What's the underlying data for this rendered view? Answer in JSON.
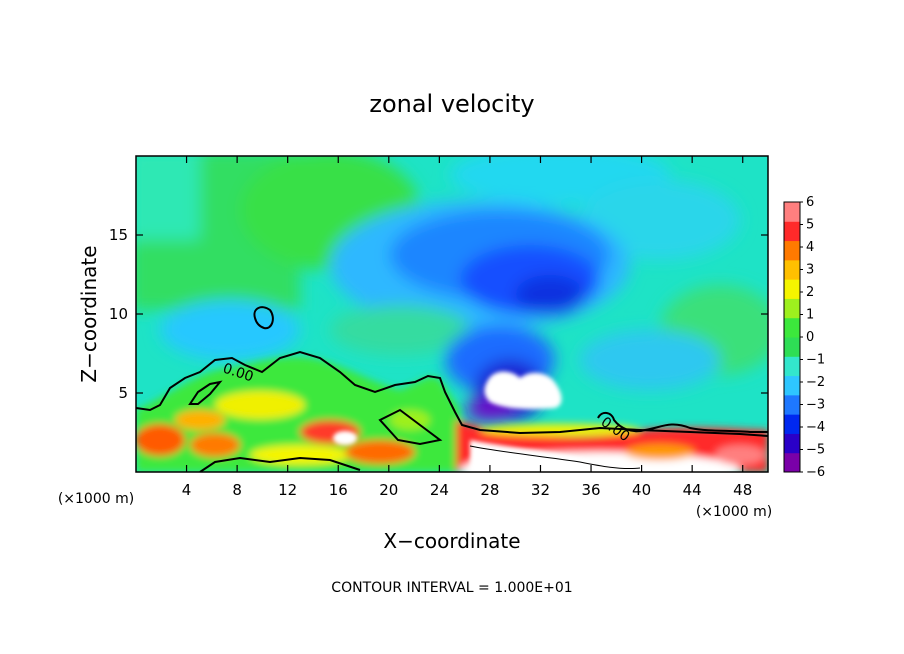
{
  "chart_data": {
    "type": "heatmap",
    "title": "zonal velocity",
    "xlabel": "X−coordinate",
    "ylabel": "Z−coordinate",
    "x_unit_left": "(×1000 m)",
    "x_unit_right": "(×1000 m)",
    "xlim": [
      0,
      50
    ],
    "ylim": [
      0,
      20
    ],
    "x_ticks": [
      4,
      8,
      12,
      16,
      20,
      24,
      28,
      32,
      36,
      40,
      44,
      48
    ],
    "y_ticks": [
      5,
      10,
      15
    ],
    "colorbar": {
      "min": -6,
      "max": 6,
      "ticks": [
        "6",
        "5",
        "4",
        "3",
        "2",
        "1",
        "0",
        "−1",
        "−2",
        "−3",
        "−4",
        "−5",
        "−6"
      ],
      "colors": [
        "#7a00a8",
        "#2a00c8",
        "#0028f0",
        "#1e78ff",
        "#2ec6ff",
        "#33e6cc",
        "#2ede55",
        "#3ce83c",
        "#9ef01e",
        "#f5f500",
        "#ffc000",
        "#ff7a00",
        "#ff2a2a",
        "#ff7f7f"
      ]
    },
    "contour_labels": [
      "0.00",
      "0.00"
    ],
    "footnote": "CONTOUR INTERVAL = 1.000E+01"
  }
}
